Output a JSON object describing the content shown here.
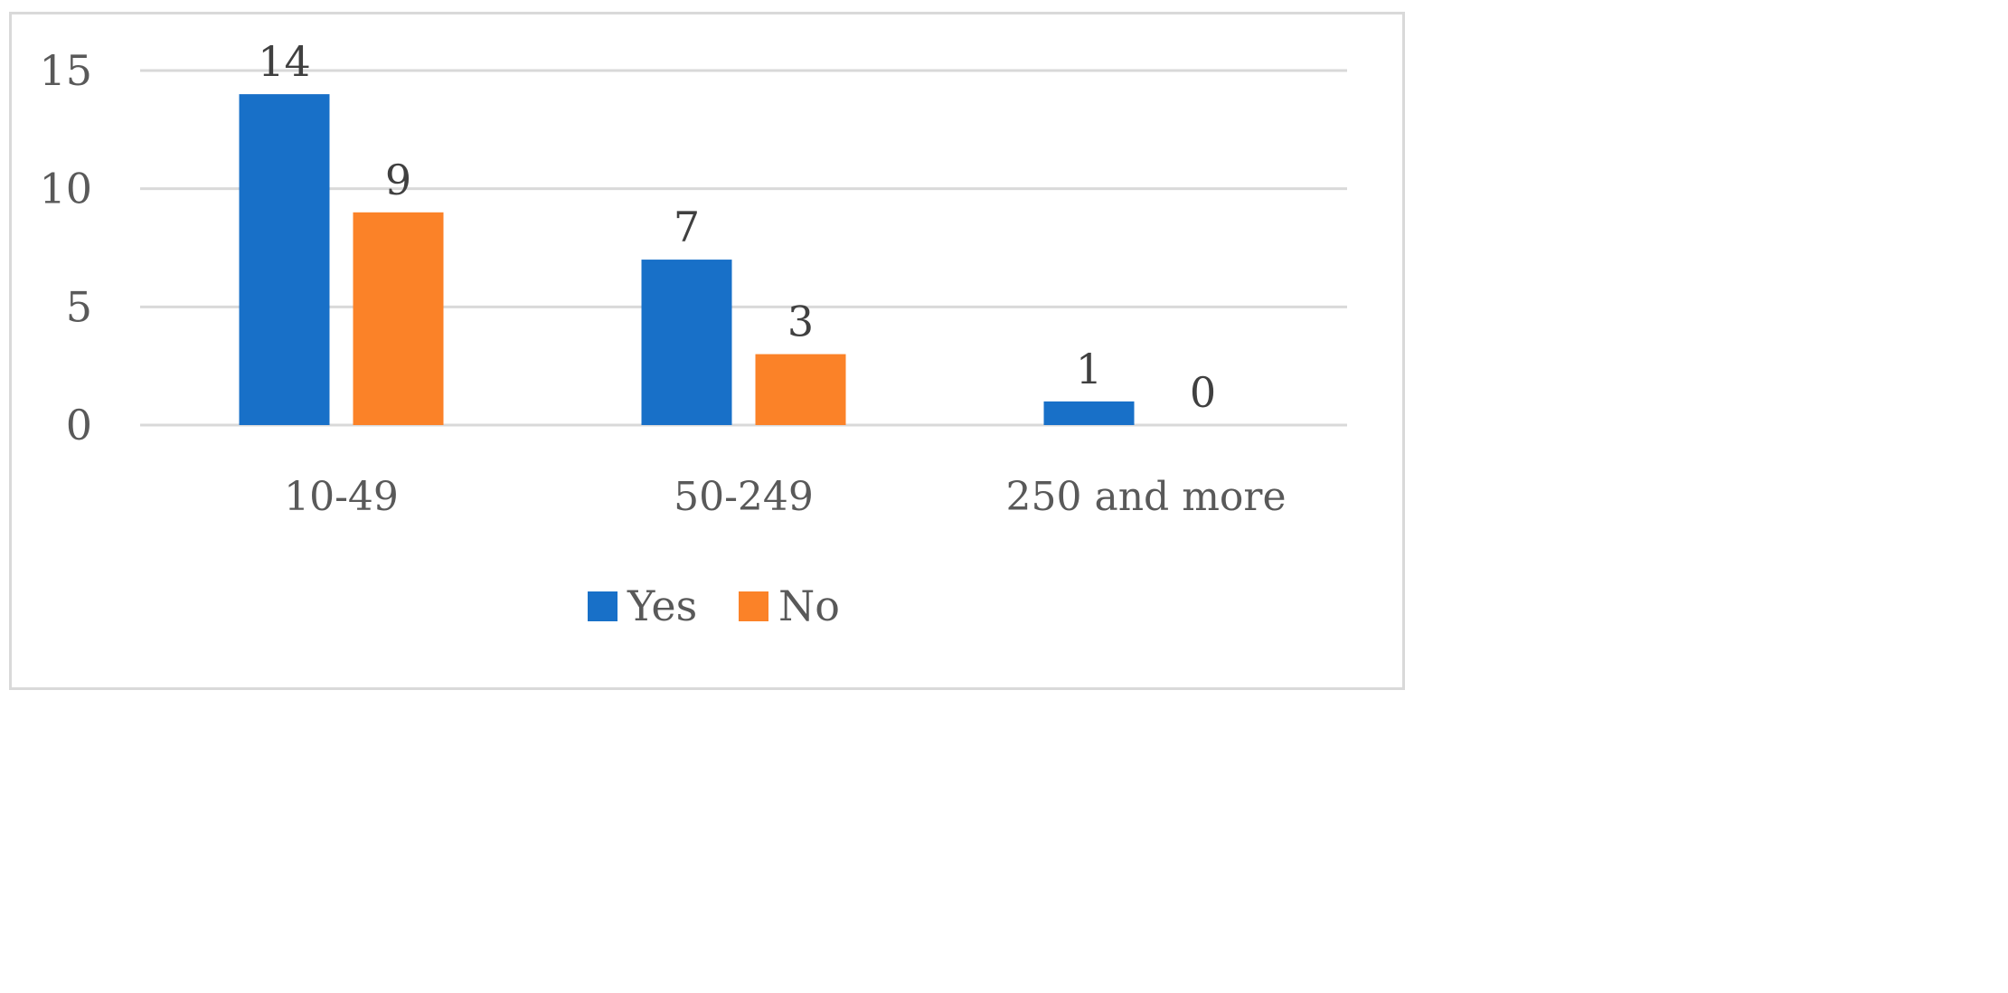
{
  "chart_data": {
    "type": "bar",
    "categories": [
      "10-49",
      "50-249",
      "250 and more"
    ],
    "series": [
      {
        "name": "Yes",
        "values": [
          14,
          7,
          1
        ],
        "color": "#1870c8"
      },
      {
        "name": "No",
        "values": [
          9,
          3,
          0
        ],
        "color": "#fb8228"
      }
    ],
    "title": "",
    "xlabel": "",
    "ylabel": "",
    "ylim": [
      0,
      15
    ],
    "yticks": [
      0,
      5,
      10,
      15
    ],
    "grid": true,
    "legend": "bottom-center",
    "data_labels": true
  }
}
